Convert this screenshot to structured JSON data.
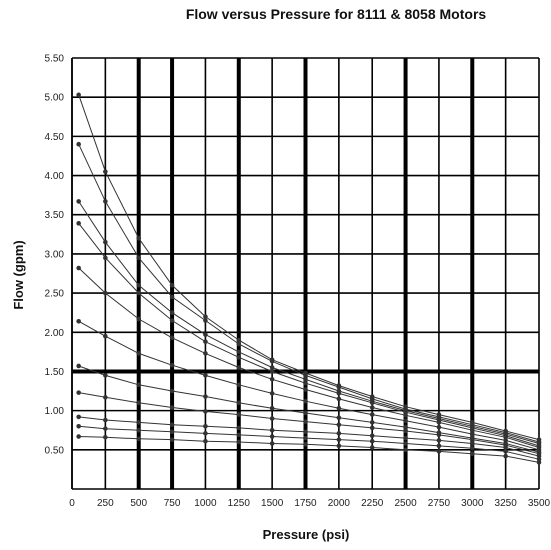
{
  "chart_data": {
    "type": "line",
    "title": "Flow versus Pressure for 8111 & 8058 Motors",
    "xlabel": "Pressure (psi)",
    "ylabel": "Flow (gpm)",
    "xlim": [
      0,
      3500
    ],
    "ylim": [
      0,
      5.5
    ],
    "x_ticks": [
      0,
      250,
      500,
      750,
      1000,
      1250,
      1500,
      1750,
      2000,
      2250,
      2500,
      2750,
      3000,
      3250,
      3500
    ],
    "y_ticks": [
      0.5,
      1.0,
      1.5,
      2.0,
      2.5,
      3.0,
      3.5,
      4.0,
      4.5,
      5.0,
      5.5
    ],
    "y_tick_labels": [
      "0.50",
      "1.00",
      "1.50",
      "2.00",
      "2.50",
      "3.00",
      "3.50",
      "4.00",
      "4.50",
      "5.00",
      "5.50"
    ],
    "grid": true,
    "highlighted_x_lines": [
      500,
      750,
      1250,
      1750,
      2500,
      3000
    ],
    "highlighted_y_lines": [
      1.5
    ],
    "x": [
      50,
      250,
      500,
      750,
      1000,
      1250,
      1500,
      1750,
      2000,
      2250,
      2500,
      2750,
      3000,
      3250,
      3500
    ],
    "series": [
      {
        "values": [
          5.03,
          4.05,
          3.2,
          2.6,
          2.2,
          1.9,
          1.65,
          1.48,
          1.32,
          1.18,
          1.05,
          0.95,
          0.85,
          0.74,
          0.63
        ]
      },
      {
        "values": [
          4.4,
          3.67,
          2.95,
          2.45,
          2.15,
          1.85,
          1.63,
          1.45,
          1.3,
          1.15,
          1.02,
          0.92,
          0.82,
          0.72,
          0.6
        ]
      },
      {
        "values": [
          3.67,
          3.15,
          2.6,
          2.25,
          1.97,
          1.75,
          1.55,
          1.4,
          1.25,
          1.12,
          1.0,
          0.9,
          0.8,
          0.7,
          0.58
        ]
      },
      {
        "values": [
          3.39,
          2.95,
          2.5,
          2.15,
          1.88,
          1.68,
          1.5,
          1.35,
          1.22,
          1.1,
          0.98,
          0.88,
          0.78,
          0.68,
          0.55
        ]
      },
      {
        "values": [
          2.82,
          2.5,
          2.17,
          1.93,
          1.73,
          1.55,
          1.4,
          1.27,
          1.15,
          1.04,
          0.94,
          0.85,
          0.75,
          0.66,
          0.53
        ]
      },
      {
        "values": [
          2.14,
          1.95,
          1.73,
          1.58,
          1.45,
          1.33,
          1.22,
          1.12,
          1.03,
          0.95,
          0.87,
          0.79,
          0.7,
          0.62,
          0.5
        ]
      },
      {
        "values": [
          1.57,
          1.45,
          1.33,
          1.25,
          1.18,
          1.1,
          1.03,
          0.97,
          0.91,
          0.85,
          0.79,
          0.72,
          0.65,
          0.58,
          0.47
        ]
      },
      {
        "values": [
          1.23,
          1.17,
          1.1,
          1.04,
          0.99,
          0.95,
          0.9,
          0.86,
          0.82,
          0.78,
          0.74,
          0.69,
          0.63,
          0.56,
          0.45
        ]
      },
      {
        "values": [
          0.92,
          0.88,
          0.85,
          0.82,
          0.8,
          0.78,
          0.75,
          0.73,
          0.71,
          0.68,
          0.65,
          0.62,
          0.58,
          0.53,
          0.42
        ]
      },
      {
        "values": [
          0.8,
          0.77,
          0.75,
          0.73,
          0.71,
          0.69,
          0.67,
          0.65,
          0.63,
          0.61,
          0.58,
          0.55,
          0.52,
          0.48,
          0.38
        ]
      },
      {
        "values": [
          0.67,
          0.66,
          0.64,
          0.63,
          0.61,
          0.6,
          0.58,
          0.57,
          0.55,
          0.53,
          0.5,
          0.48,
          0.45,
          0.42,
          0.34
        ]
      }
    ],
    "colors": {
      "line": "#333333",
      "marker": "#333333",
      "grid": "#000000",
      "background": "#ffffff"
    }
  }
}
